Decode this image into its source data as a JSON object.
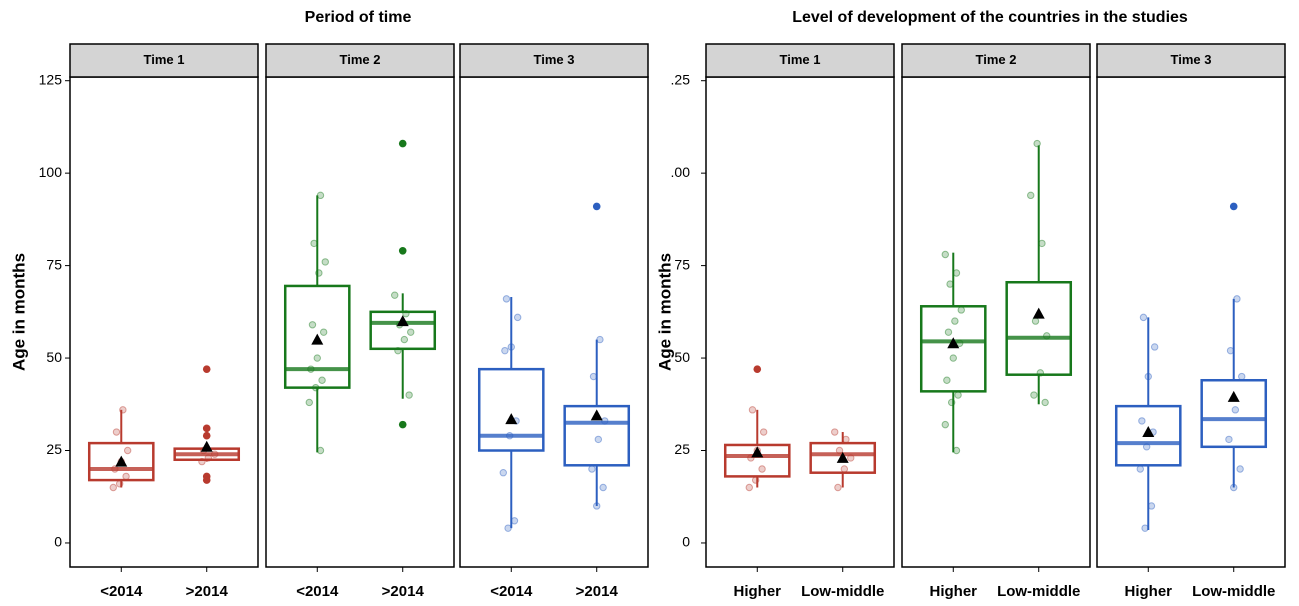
{
  "chart_data": [
    {
      "type": "box",
      "title": "Period of time",
      "y_label": "Age in months",
      "ylim": [
        -6.5,
        126
      ],
      "yticks": [
        0,
        25,
        50,
        75,
        100,
        125
      ],
      "facets": [
        {
          "label": "Time 1",
          "color": "#b83a2e",
          "categories": [
            "<2014",
            ">2014"
          ],
          "boxes": [
            {
              "whisker_low": 15,
              "q1": 17,
              "median": 20,
              "q3": 27,
              "whisker_high": 36,
              "mean": 22,
              "outliers": [],
              "points": [
                15,
                16,
                18,
                20,
                22,
                25,
                30,
                36
              ]
            },
            {
              "whisker_low": 22,
              "q1": 22.5,
              "median": 24,
              "q3": 25.5,
              "whisker_high": 25.5,
              "mean": 26,
              "outliers": [
                17,
                18,
                29,
                31,
                47
              ],
              "points": [
                22,
                23,
                24,
                25
              ]
            }
          ]
        },
        {
          "label": "Time 2",
          "color": "#17781b",
          "categories": [
            "<2014",
            ">2014"
          ],
          "boxes": [
            {
              "whisker_low": 24.5,
              "q1": 42,
              "median": 47,
              "q3": 69.5,
              "whisker_high": 94,
              "mean": 55,
              "outliers": [],
              "points": [
                25,
                38,
                42,
                44,
                47,
                50,
                57,
                59,
                73,
                76,
                81,
                94
              ]
            },
            {
              "whisker_low": 39,
              "q1": 52.5,
              "median": 59.5,
              "q3": 62.5,
              "whisker_high": 67.5,
              "mean": 60,
              "outliers": [
                32,
                79,
                108
              ],
              "points": [
                40,
                52,
                55,
                57,
                59,
                62,
                67
              ]
            }
          ]
        },
        {
          "label": "Time 3",
          "color": "#2c5fc0",
          "categories": [
            "<2014",
            ">2014"
          ],
          "boxes": [
            {
              "whisker_low": 4,
              "q1": 25,
              "median": 29,
              "q3": 47,
              "whisker_high": 66.5,
              "mean": 33.5,
              "outliers": [],
              "points": [
                4,
                6,
                19,
                29,
                33,
                52,
                53,
                61,
                66
              ]
            },
            {
              "whisker_low": 10,
              "q1": 21,
              "median": 32.5,
              "q3": 37,
              "whisker_high": 55,
              "mean": 34.5,
              "outliers": [
                91
              ],
              "points": [
                10,
                15,
                20,
                28,
                33,
                45,
                55
              ]
            }
          ]
        }
      ]
    },
    {
      "type": "box",
      "title": "Level of development of the countries in the studies",
      "y_label": "Age in months",
      "ylim": [
        -6.5,
        126
      ],
      "yticks": [
        0,
        25,
        50,
        75,
        {
          "value": 100,
          "label": ".00"
        },
        {
          "value": 125,
          "label": ".25"
        }
      ],
      "facets": [
        {
          "label": "Time 1",
          "color": "#b83a2e",
          "categories": [
            "Higher",
            "Low-middle"
          ],
          "boxes": [
            {
              "whisker_low": 15,
              "q1": 18,
              "median": 23.5,
              "q3": 26.5,
              "whisker_high": 36,
              "mean": 24.5,
              "outliers": [
                47
              ],
              "points": [
                15,
                17,
                20,
                23,
                25,
                30,
                36
              ]
            },
            {
              "whisker_low": 15,
              "q1": 19,
              "median": 24,
              "q3": 27,
              "whisker_high": 30,
              "mean": 23,
              "outliers": [],
              "points": [
                15,
                20,
                23,
                25,
                28,
                30
              ]
            }
          ]
        },
        {
          "label": "Time 2",
          "color": "#17781b",
          "categories": [
            "Higher",
            "Low-middle"
          ],
          "boxes": [
            {
              "whisker_low": 24.5,
              "q1": 41,
              "median": 54.5,
              "q3": 64,
              "whisker_high": 78.5,
              "mean": 54,
              "outliers": [],
              "points": [
                25,
                32,
                38,
                40,
                44,
                50,
                54,
                57,
                60,
                63,
                70,
                73,
                78
              ]
            },
            {
              "whisker_low": 37.5,
              "q1": 45.5,
              "median": 55.5,
              "q3": 70.5,
              "whisker_high": 107.5,
              "mean": 62,
              "outliers": [],
              "points": [
                38,
                40,
                46,
                56,
                60,
                81,
                94,
                108
              ]
            }
          ]
        },
        {
          "label": "Time 3",
          "color": "#2c5fc0",
          "categories": [
            "Higher",
            "Low-middle"
          ],
          "boxes": [
            {
              "whisker_low": 3.5,
              "q1": 21,
              "median": 27,
              "q3": 37,
              "whisker_high": 61,
              "mean": 30,
              "outliers": [],
              "points": [
                4,
                10,
                20,
                26,
                30,
                33,
                45,
                53,
                61
              ]
            },
            {
              "whisker_low": 15,
              "q1": 26,
              "median": 33.5,
              "q3": 44,
              "whisker_high": 66,
              "mean": 39.5,
              "outliers": [
                91
              ],
              "points": [
                15,
                20,
                28,
                36,
                45,
                52,
                66
              ]
            }
          ]
        }
      ]
    }
  ]
}
